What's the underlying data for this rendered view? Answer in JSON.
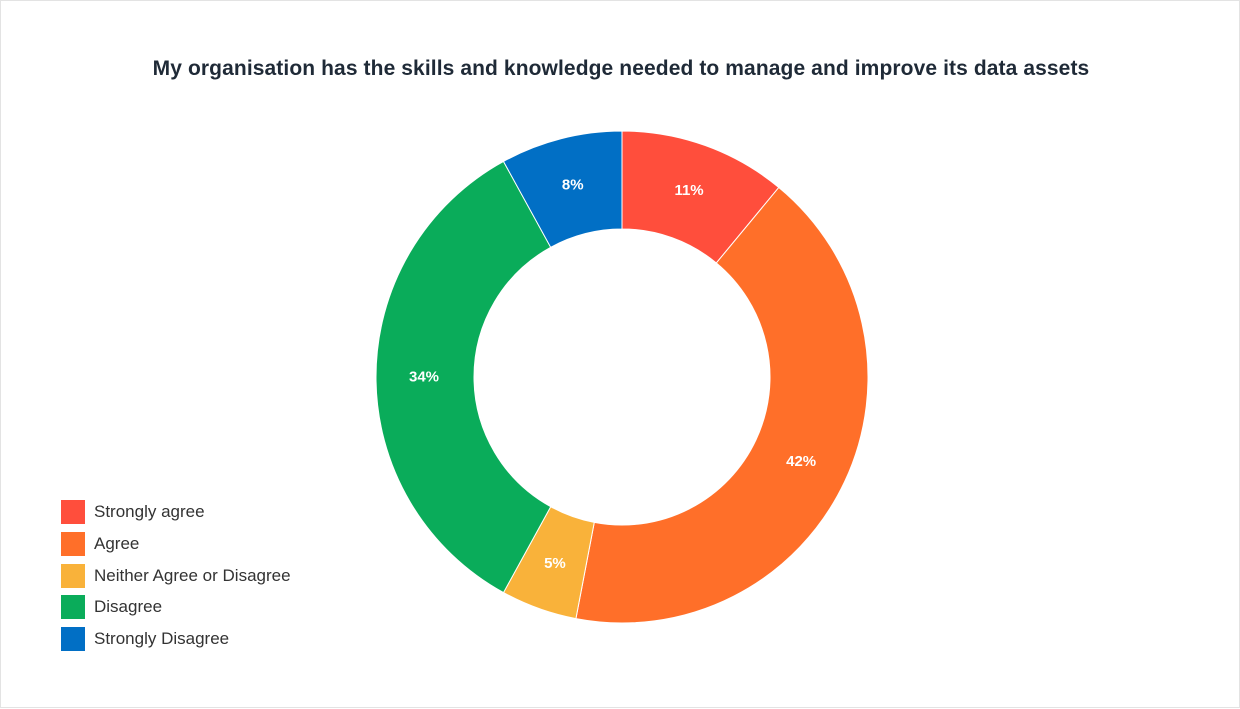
{
  "chart_data": {
    "type": "pie",
    "variant": "donut",
    "title": "My organisation has the skills and knowledge needed to manage and improve its data assets",
    "categories": [
      "Strongly agree",
      "Agree",
      "Neither Agree or Disagree",
      "Disagree",
      "Strongly Disagree"
    ],
    "values": [
      11,
      42,
      5,
      34,
      8
    ],
    "value_labels": [
      "11%",
      "42%",
      "5%",
      "34%",
      "8%"
    ],
    "colors": [
      "#ff4e3c",
      "#ff6f29",
      "#f9b23a",
      "#0aac5a",
      "#016fc5"
    ],
    "legend_placement": "bottom-left",
    "start": "top",
    "direction": "clockwise"
  }
}
